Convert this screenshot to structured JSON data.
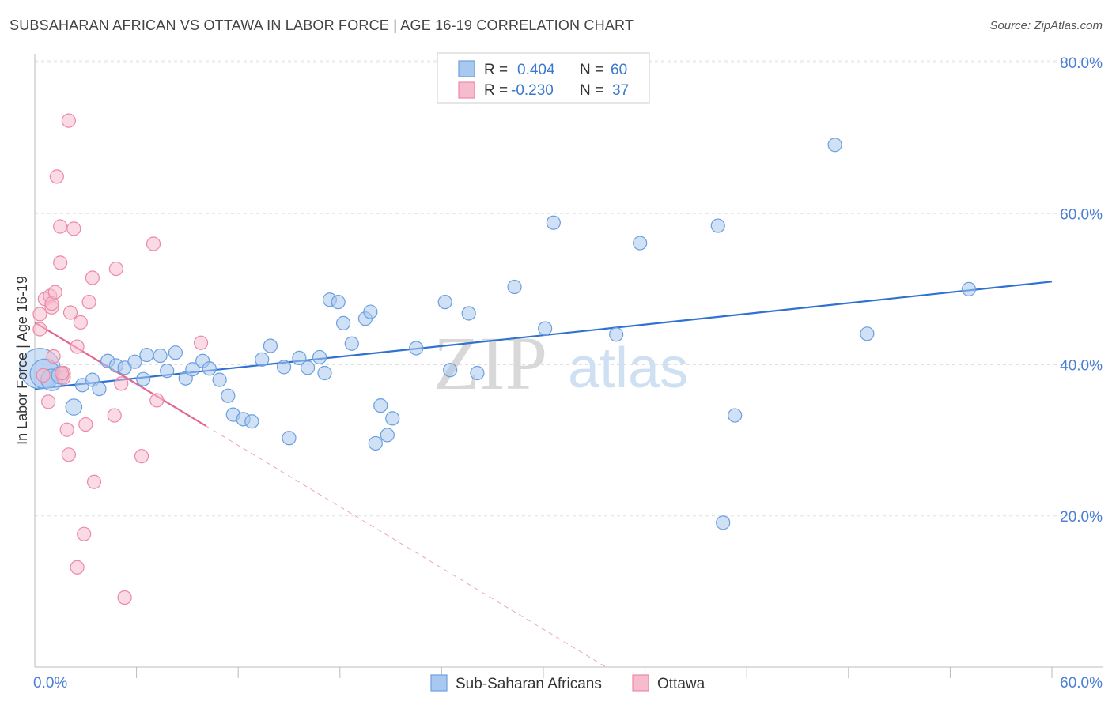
{
  "header": {
    "title": "SUBSAHARAN AFRICAN VS OTTAWA IN LABOR FORCE | AGE 16-19 CORRELATION CHART",
    "source": "Source: ZipAtlas.com"
  },
  "watermark": {
    "zip": "ZIP",
    "atlas": "atlas"
  },
  "colors": {
    "blue_fill": "#a9c8ef",
    "blue_stroke": "#6b9fe0",
    "blue_line": "#2f72d1",
    "pink_fill": "#f6bccd",
    "pink_stroke": "#ec8aa6",
    "pink_line": "#e06890",
    "grid": "#e0e0e0",
    "axis_text": "#4a7fd4"
  },
  "legend": {
    "rows": [
      {
        "r_label": "R =",
        "r_value": "0.404",
        "n_label": "N =",
        "n_value": "60"
      },
      {
        "r_label": "R =",
        "r_value": "-0.230",
        "n_label": "N =",
        "n_value": "37"
      }
    ]
  },
  "bottom_legend": {
    "items": [
      {
        "label": "Sub-Saharan Africans"
      },
      {
        "label": "Ottawa"
      }
    ]
  },
  "chart_data": {
    "type": "scatter",
    "title": "SUBSAHARAN AFRICAN VS OTTAWA IN LABOR FORCE | AGE 16-19 CORRELATION CHART",
    "xlabel": "",
    "ylabel": "In Labor Force | Age 16-19",
    "xlim": [
      0,
      60
    ],
    "ylim": [
      0,
      80
    ],
    "x_tick_labels": {
      "left": "0.0%",
      "right": "60.0%"
    },
    "y_ticks": [
      {
        "value": 20,
        "label": "20.0%"
      },
      {
        "value": 40,
        "label": "40.0%"
      },
      {
        "value": 60,
        "label": "60.0%"
      },
      {
        "value": 80,
        "label": "80.0%"
      }
    ],
    "series": [
      {
        "name": "Sub-Saharan Africans",
        "r": 0.404,
        "n": 60,
        "trend": {
          "x": [
            0,
            60
          ],
          "y": [
            36.8,
            51.0
          ],
          "dashed_extension": false
        },
        "points": [
          [
            0.3,
            39.5,
            3
          ],
          [
            0.6,
            38.8,
            2.2
          ],
          [
            1.0,
            38.0,
            1.6
          ],
          [
            1.5,
            38.6,
            1.3
          ],
          [
            2.3,
            34.4,
            1.2
          ],
          [
            2.8,
            37.3,
            1
          ],
          [
            3.4,
            38.0,
            1
          ],
          [
            3.8,
            36.8,
            1
          ],
          [
            4.3,
            40.5,
            1
          ],
          [
            4.8,
            39.9,
            1
          ],
          [
            5.3,
            39.6,
            1
          ],
          [
            5.9,
            40.4,
            1
          ],
          [
            6.4,
            38.1,
            1
          ],
          [
            6.6,
            41.3,
            1
          ],
          [
            7.4,
            41.2,
            1
          ],
          [
            7.8,
            39.2,
            1
          ],
          [
            8.3,
            41.6,
            1
          ],
          [
            8.9,
            38.2,
            1
          ],
          [
            9.3,
            39.4,
            1
          ],
          [
            9.9,
            40.5,
            1
          ],
          [
            10.3,
            39.5,
            1
          ],
          [
            10.9,
            38.0,
            1
          ],
          [
            11.4,
            35.9,
            1
          ],
          [
            11.7,
            33.4,
            1
          ],
          [
            12.3,
            32.8,
            1
          ],
          [
            12.8,
            32.5,
            1
          ],
          [
            13.4,
            40.7,
            1
          ],
          [
            13.9,
            42.5,
            1
          ],
          [
            14.7,
            39.7,
            1
          ],
          [
            15.0,
            30.3,
            1
          ],
          [
            15.6,
            40.9,
            1
          ],
          [
            16.1,
            39.6,
            1
          ],
          [
            16.8,
            41.0,
            1
          ],
          [
            17.1,
            38.9,
            1
          ],
          [
            17.4,
            48.6,
            1
          ],
          [
            17.9,
            48.3,
            1
          ],
          [
            18.2,
            45.5,
            1
          ],
          [
            18.7,
            42.8,
            1
          ],
          [
            19.5,
            46.1,
            1
          ],
          [
            19.8,
            47.0,
            1
          ],
          [
            20.4,
            34.6,
            1
          ],
          [
            20.8,
            30.7,
            1
          ],
          [
            21.1,
            32.9,
            1
          ],
          [
            20.1,
            29.6,
            1
          ],
          [
            22.5,
            42.2,
            1
          ],
          [
            24.2,
            48.3,
            1
          ],
          [
            24.5,
            39.3,
            1
          ],
          [
            25.6,
            46.8,
            1
          ],
          [
            26.1,
            38.9,
            1
          ],
          [
            28.3,
            50.3,
            1
          ],
          [
            30.1,
            44.8,
            1
          ],
          [
            30.6,
            58.8,
            1
          ],
          [
            34.3,
            44.0,
            1
          ],
          [
            35.7,
            56.1,
            1
          ],
          [
            40.3,
            58.4,
            1
          ],
          [
            41.3,
            33.3,
            1
          ],
          [
            40.6,
            19.1,
            1
          ],
          [
            47.2,
            69.1,
            1
          ],
          [
            49.1,
            44.1,
            1
          ],
          [
            55.1,
            50.0,
            1
          ]
        ]
      },
      {
        "name": "Ottawa",
        "r": -0.23,
        "n": 37,
        "trend": {
          "x": [
            0,
            10.1
          ],
          "y": [
            45.6,
            31.9
          ],
          "dash_x": [
            10.1,
            33.7
          ],
          "dash_y": [
            31.9,
            0
          ]
        },
        "points": [
          [
            0.3,
            46.7,
            1
          ],
          [
            0.3,
            44.7,
            1
          ],
          [
            0.5,
            38.6,
            1
          ],
          [
            0.6,
            48.7,
            1
          ],
          [
            0.8,
            35.1,
            1
          ],
          [
            0.9,
            49.1,
            1
          ],
          [
            1.0,
            47.6,
            1
          ],
          [
            1.0,
            48.1,
            1
          ],
          [
            1.1,
            41.1,
            1
          ],
          [
            1.2,
            49.6,
            1
          ],
          [
            1.3,
            64.9,
            1
          ],
          [
            1.5,
            58.3,
            1
          ],
          [
            1.5,
            53.5,
            1
          ],
          [
            1.7,
            38.9,
            1
          ],
          [
            1.7,
            38.3,
            1
          ],
          [
            1.9,
            31.4,
            1
          ],
          [
            2.0,
            72.3,
            1
          ],
          [
            2.0,
            28.1,
            1
          ],
          [
            2.1,
            46.9,
            1
          ],
          [
            2.3,
            58.0,
            1
          ],
          [
            2.5,
            42.4,
            1
          ],
          [
            2.5,
            13.2,
            1
          ],
          [
            2.7,
            45.6,
            1
          ],
          [
            2.9,
            17.6,
            1
          ],
          [
            3.0,
            32.1,
            1
          ],
          [
            3.2,
            48.3,
            1
          ],
          [
            3.4,
            51.5,
            1
          ],
          [
            3.5,
            24.5,
            1
          ],
          [
            4.7,
            33.3,
            1
          ],
          [
            4.8,
            52.7,
            1
          ],
          [
            5.1,
            37.5,
            1
          ],
          [
            5.3,
            9.2,
            1
          ],
          [
            6.3,
            27.9,
            1
          ],
          [
            7.0,
            56.0,
            1
          ],
          [
            7.2,
            35.3,
            1
          ],
          [
            9.8,
            42.9,
            1
          ],
          [
            1.6,
            38.9,
            1
          ]
        ]
      }
    ]
  }
}
